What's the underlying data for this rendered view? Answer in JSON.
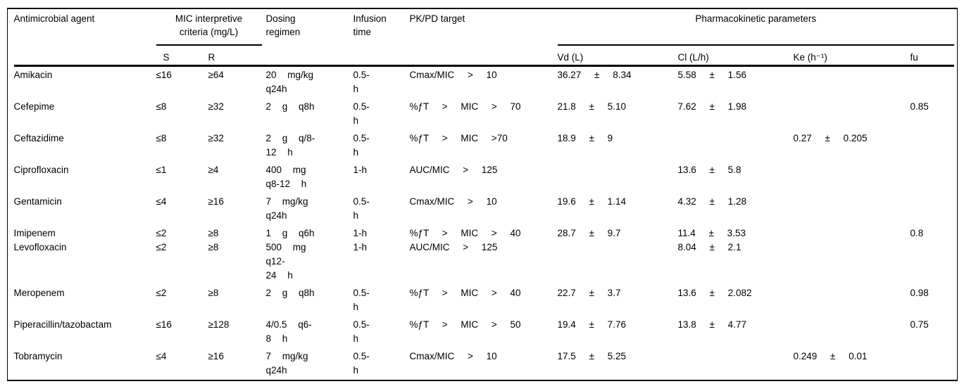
{
  "table": {
    "group_headers": {
      "mic": "MIC interpretive\ncriteria (mg/L)",
      "pk": "Pharmacokinetic parameters"
    },
    "columns": {
      "agent": "Antimicrobial agent",
      "s": "S",
      "r": "R",
      "dosing": "Dosing\nregimen",
      "infusion": "Infusion\ntime",
      "pkpd": "PK/PD target",
      "vd": "Vd (L)",
      "cl": "Cl (L/h)",
      "ke": "Ke (h⁻¹)",
      "fu": "fu"
    },
    "rows": [
      {
        "agent": "Amikacin",
        "s": "≤16",
        "r": "≥64",
        "dosing": "20 mg/kg\nq24h",
        "infusion": "0.5-\nh",
        "pkpd": "Cmax/MIC > 10",
        "vd": "36.27 ± 8.34",
        "cl": "5.58 ± 1.56",
        "ke": "",
        "fu": ""
      },
      {
        "agent": "Cefepime",
        "s": "≤8",
        "r": "≥32",
        "dosing": "2 g q8h",
        "infusion": "0.5-\nh",
        "pkpd": "%ƒT > MIC > 70",
        "vd": "21.8 ± 5.10",
        "cl": "7.62 ± 1.98",
        "ke": "",
        "fu": "0.85"
      },
      {
        "agent": "Ceftazidime",
        "s": "≤8",
        "r": "≥32",
        "dosing": "2 g q/8-\n12 h",
        "infusion": "0.5-\nh",
        "pkpd": "%ƒT > MIC >70",
        "vd": "18.9 ± 9",
        "cl": "",
        "ke": "0.27 ± 0.205",
        "fu": ""
      },
      {
        "agent": "Ciprofloxacin",
        "s": "≤1",
        "r": "≥4",
        "dosing": "400 mg\nq8-12 h",
        "infusion": "1-h",
        "pkpd": "AUC/MIC > 125",
        "vd": "",
        "cl": "13.6 ± 5.8",
        "ke": "",
        "fu": ""
      },
      {
        "agent": "Gentamicin",
        "s": "≤4",
        "r": "≥16",
        "dosing": "7 mg/kg\nq24h",
        "infusion": "0.5-\nh",
        "pkpd": "Cmax/MIC > 10",
        "vd": "19.6 ± 1.14",
        "cl": "4.32 ± 1.28",
        "ke": "",
        "fu": ""
      },
      {
        "agent": "Imipenem",
        "s": "≤2",
        "r": "≥8",
        "dosing": "1 g q6h",
        "infusion": "1-h",
        "pkpd": "%ƒT > MIC > 40",
        "vd": "28.7 ± 9.7",
        "cl": "11.4 ± 3.53",
        "ke": "",
        "fu": "0.8"
      },
      {
        "agent": "Levofloxacin",
        "s": "≤2",
        "r": "≥8",
        "dosing": "500 mg\nq12-\n24 h",
        "infusion": "1-h",
        "pkpd": "AUC/MIC > 125",
        "vd": "",
        "cl": "8.04 ± 2.1",
        "ke": "",
        "fu": ""
      },
      {
        "agent": "Meropenem",
        "s": "≤2",
        "r": "≥8",
        "dosing": "2 g q8h",
        "infusion": "0.5-\nh",
        "pkpd": "%ƒT > MIC > 40",
        "vd": "22.7 ± 3.7",
        "cl": "13.6 ± 2.082",
        "ke": "",
        "fu": "0.98"
      },
      {
        "agent": "Piperacillin/tazobactam",
        "s": "≤16",
        "r": "≥128",
        "dosing": "4/0.5 q6-\n8 h",
        "infusion": "0.5-\nh",
        "pkpd": "%ƒT > MIC > 50",
        "vd": "19.4 ± 7.76",
        "cl": "13.8 ± 4.77",
        "ke": "",
        "fu": "0.75"
      },
      {
        "agent": "Tobramycin",
        "s": "≤4",
        "r": "≥16",
        "dosing": "7 mg/kg\nq24h",
        "infusion": "0.5-\nh",
        "pkpd": "Cmax/MIC > 10",
        "vd": "17.5 ± 5.25",
        "cl": "",
        "ke": "0.249 ± 0.01",
        "fu": ""
      }
    ]
  }
}
